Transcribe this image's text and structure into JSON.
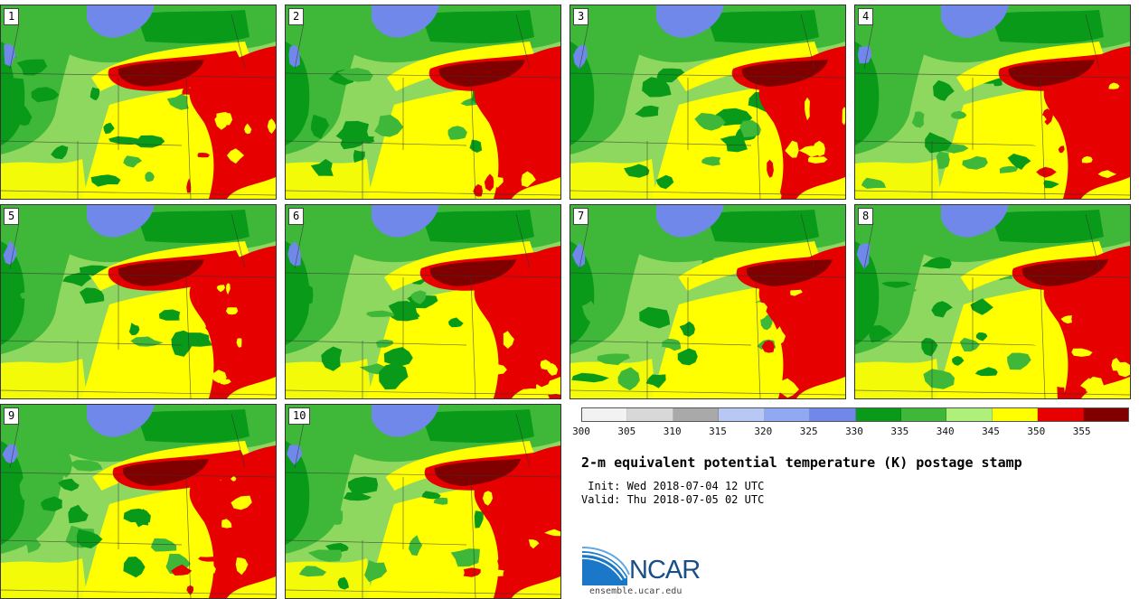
{
  "title": "2-m equivalent potential temperature (K) postage stamp",
  "init_text": " Init: Wed 2018-07-04 12 UTC",
  "valid_text": "Valid: Thu 2018-07-05 02 UTC",
  "logo_text": "NCAR",
  "website": "ensemble.ucar.edu",
  "members": [
    "1",
    "2",
    "3",
    "4",
    "5",
    "6",
    "7",
    "8",
    "9",
    "10"
  ],
  "colorbar": {
    "ticks": [
      "300",
      "305",
      "310",
      "315",
      "320",
      "325",
      "330",
      "335",
      "340",
      "345",
      "350",
      "355"
    ],
    "colors": [
      "#f2f2f2",
      "#d8d8d8",
      "#a9a9a9",
      "#b7c8f4",
      "#8faaf2",
      "#6f88ea",
      "#0a9a1a",
      "#3fb83a",
      "#aef07a",
      "#ffff00",
      "#e60000",
      "#800000"
    ]
  },
  "map_colors": {
    "k325": "#6f88ea",
    "k335": "#0a9a1a",
    "k340": "#3fb83a",
    "k345": "#8fd860",
    "k350": "#ffff00",
    "k355": "#e60000",
    "k360": "#800000",
    "borders": "#333333"
  }
}
